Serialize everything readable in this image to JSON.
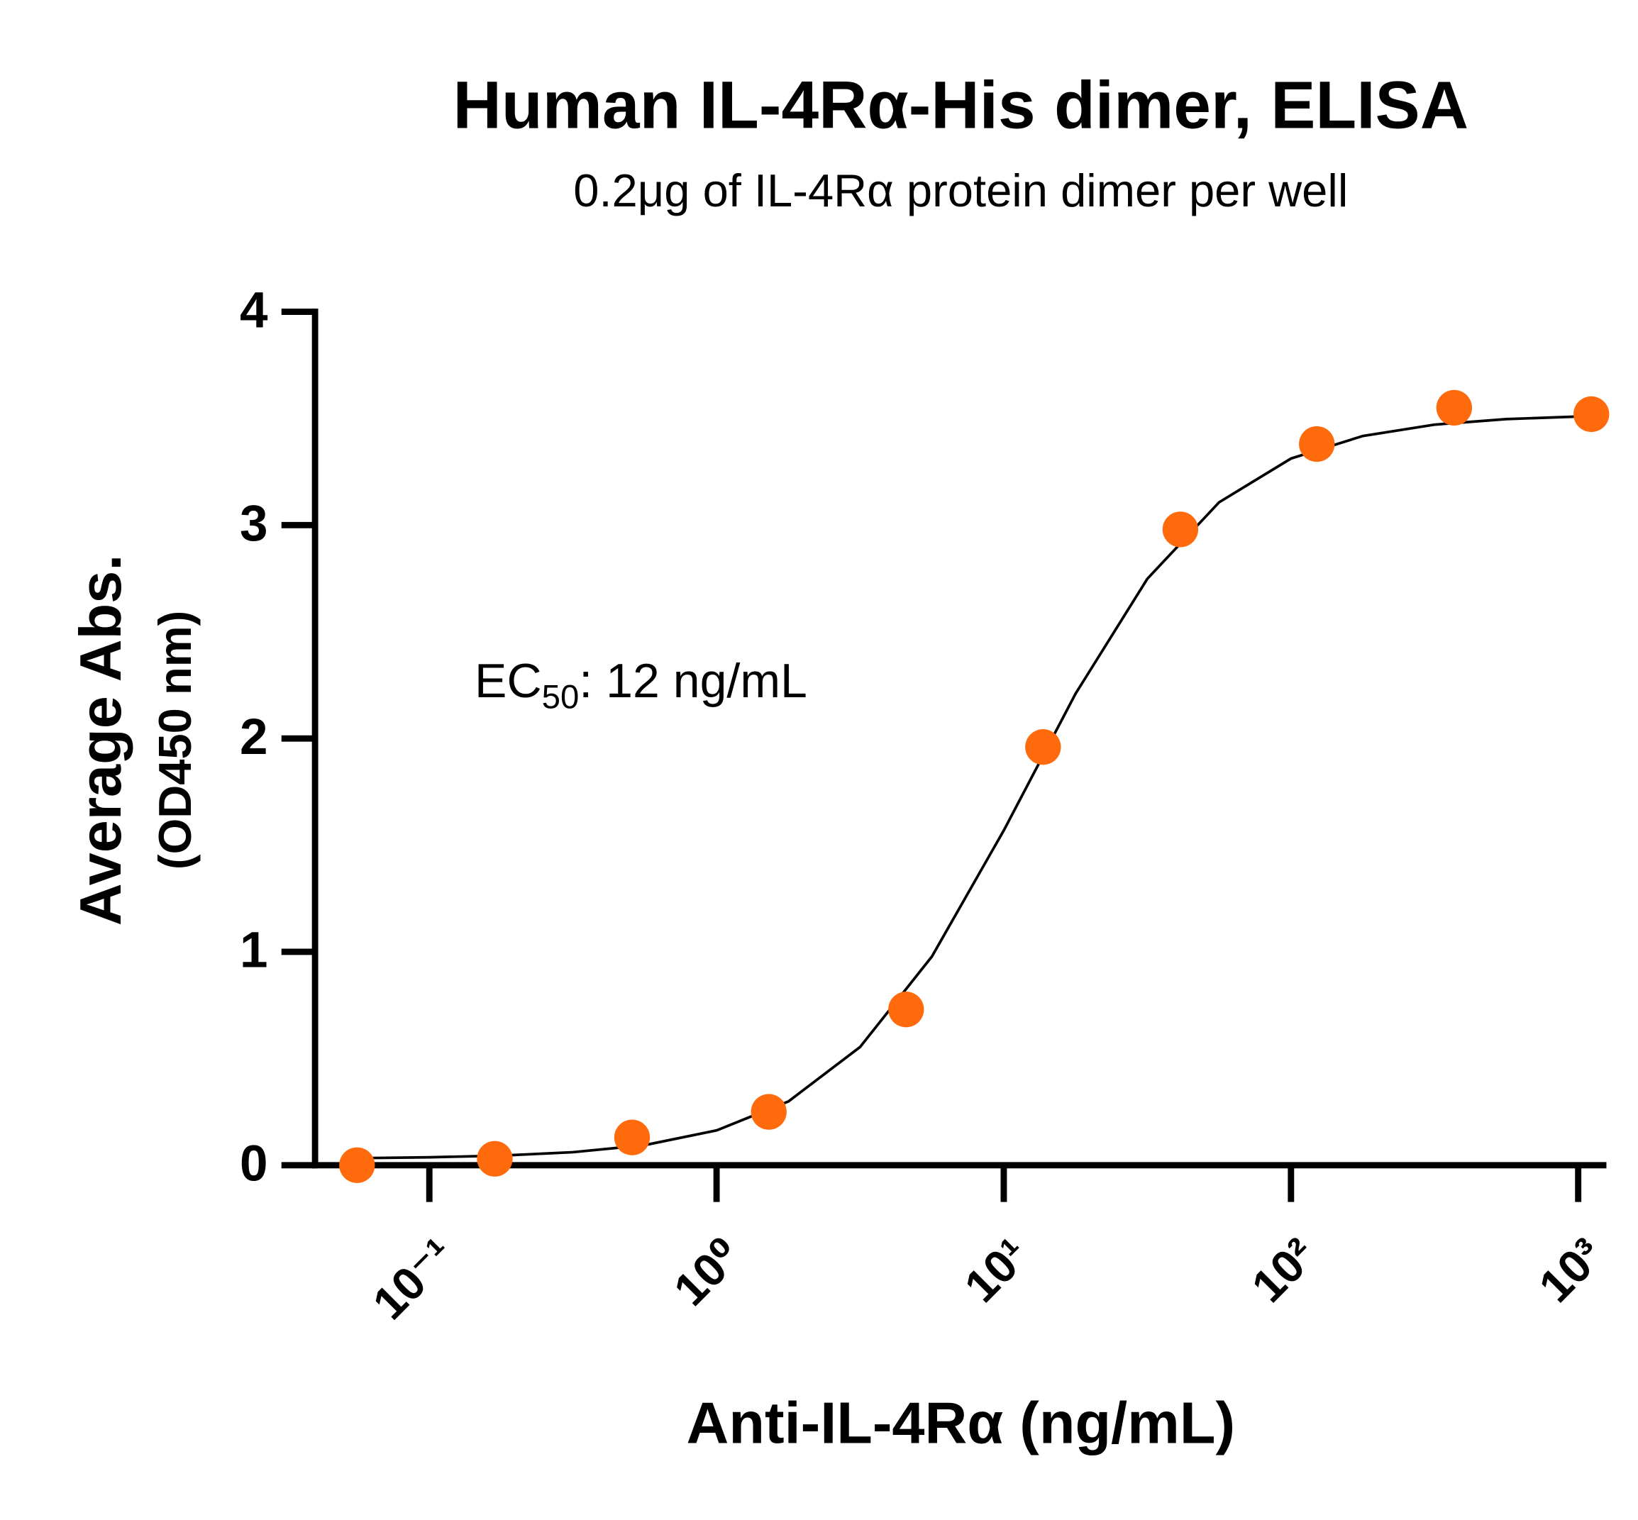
{
  "chart_data": {
    "type": "scatter",
    "title": "Human IL-4Rα-His dimer, ELISA",
    "subtitle": "0.2μg of IL-4Rα protein dimer per well",
    "x_label": "Anti-IL-4Rα (ng/mL)",
    "y_label": [
      "Average Abs.",
      "(OD450 nm)"
    ],
    "annotation": {
      "text": "EC",
      "sub": "50",
      "rest": ": 12 ng/mL"
    },
    "x_scale": "log",
    "xlim": [
      0.04,
      1233
    ],
    "ylim": [
      0,
      4
    ],
    "xticks": [
      {
        "value": 0.1,
        "label": "10⁻¹"
      },
      {
        "value": 1,
        "label": "10⁰"
      },
      {
        "value": 10,
        "label": "10¹"
      },
      {
        "value": 100,
        "label": "10²"
      },
      {
        "value": 1000,
        "label": "10³"
      }
    ],
    "yticks": [
      0,
      1,
      2,
      3,
      4
    ],
    "series": [
      {
        "color": "#ff6a0d",
        "x": [
          0.056,
          0.169,
          0.508,
          1.52,
          4.57,
          13.7,
          41.2,
          123,
          370,
          1111
        ],
        "values": [
          0.0,
          0.03,
          0.13,
          0.25,
          0.73,
          1.96,
          2.98,
          3.38,
          3.55,
          3.52
        ]
      }
    ],
    "fit": {
      "color": "#000000",
      "x": [
        0.0562,
        0.1,
        0.178,
        0.316,
        0.562,
        1,
        1.78,
        3.16,
        5.62,
        10,
        17.8,
        31.6,
        56.2,
        100,
        178,
        316,
        562,
        1000,
        1111
      ],
      "values": [
        0.033,
        0.037,
        0.045,
        0.061,
        0.094,
        0.163,
        0.299,
        0.554,
        0.978,
        1.569,
        2.211,
        2.748,
        3.107,
        3.312,
        3.418,
        3.471,
        3.497,
        3.509,
        3.51
      ]
    }
  }
}
